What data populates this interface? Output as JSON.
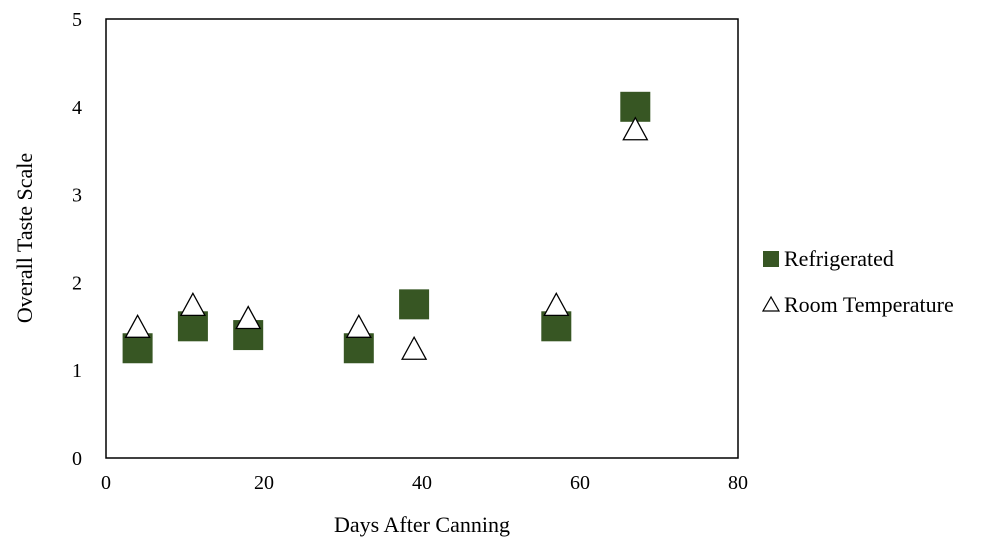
{
  "chart_data": {
    "type": "scatter",
    "title": "",
    "xlabel": "Days After Canning",
    "ylabel": "Overall Taste Scale",
    "xlim": [
      0,
      80
    ],
    "ylim": [
      0,
      5
    ],
    "xticks": [
      "0",
      "20",
      "40",
      "60",
      "80"
    ],
    "yticks": [
      "0",
      "1",
      "2",
      "3",
      "4",
      "5"
    ],
    "grid": false,
    "legend_position": "right",
    "series": [
      {
        "name": "Refrigerated",
        "marker": "square",
        "color": "#375623",
        "points": [
          {
            "x": 4,
            "y": 1.25
          },
          {
            "x": 11,
            "y": 1.5
          },
          {
            "x": 18,
            "y": 1.4
          },
          {
            "x": 32,
            "y": 1.25
          },
          {
            "x": 39,
            "y": 1.75
          },
          {
            "x": 57,
            "y": 1.5
          },
          {
            "x": 67,
            "y": 4.0
          }
        ]
      },
      {
        "name": "Room Temperature",
        "marker": "triangle-open",
        "color": "#000000",
        "points": [
          {
            "x": 4,
            "y": 1.5
          },
          {
            "x": 11,
            "y": 1.75
          },
          {
            "x": 18,
            "y": 1.6
          },
          {
            "x": 32,
            "y": 1.5
          },
          {
            "x": 39,
            "y": 1.25
          },
          {
            "x": 57,
            "y": 1.75
          },
          {
            "x": 67,
            "y": 3.75
          }
        ]
      }
    ]
  }
}
